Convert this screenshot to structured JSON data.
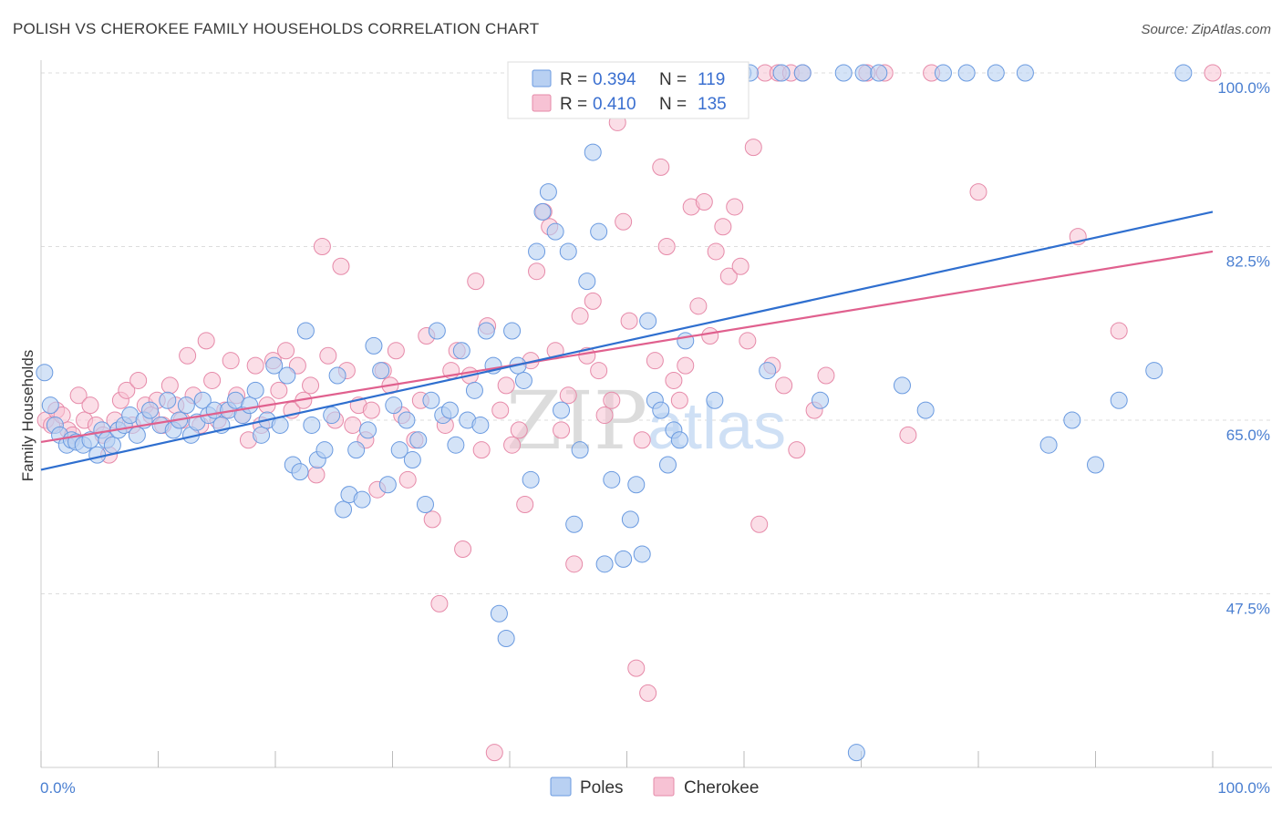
{
  "title": "POLISH VS CHEROKEE FAMILY HOUSEHOLDS CORRELATION CHART",
  "source": "Source: ZipAtlas.com",
  "watermark": {
    "part1": "ZIP",
    "part2": "atlas"
  },
  "colors": {
    "poles_fill": "#b8d0f2",
    "poles_stroke": "#6a9ae0",
    "poles_line": "#2f6fcf",
    "cherokee_fill": "#f7c2d4",
    "cherokee_stroke": "#e68aa9",
    "cherokee_line": "#e0608e",
    "axis_label": "#4a7fd1",
    "grid": "#dddddd"
  },
  "legend": {
    "poles": {
      "r_label": "R = ",
      "r_value": "0.394",
      "n_label": "N = ",
      "n_value": "119"
    },
    "cherokee": {
      "r_label": "R = ",
      "r_value": "0.410",
      "n_label": "N = ",
      "n_value": "135"
    }
  },
  "chart_data": {
    "type": "scatter",
    "title": "POLISH VS CHEROKEE FAMILY HOUSEHOLDS CORRELATION CHART",
    "xlabel": "",
    "ylabel": "Family Households",
    "xlim": [
      0,
      100
    ],
    "ylim": [
      30,
      100
    ],
    "x_tick_labels": [
      "0.0%",
      "100.0%"
    ],
    "y_ticks": [
      47.5,
      65.0,
      82.5,
      100.0
    ],
    "y_tick_labels": [
      "47.5%",
      "65.0%",
      "82.5%",
      "100.0%"
    ],
    "grid": true,
    "legend_position": "top-center",
    "bottom_legend": [
      "Poles",
      "Cherokee"
    ],
    "series": [
      {
        "name": "Poles",
        "R": 0.394,
        "N": 119,
        "trend": {
          "x": [
            0,
            100
          ],
          "y": [
            60.0,
            86.0
          ]
        },
        "points": [
          [
            0.3,
            69.8
          ],
          [
            0.8,
            66.5
          ],
          [
            1.2,
            64.5
          ],
          [
            1.6,
            63.5
          ],
          [
            2.2,
            62.5
          ],
          [
            2.6,
            63.0
          ],
          [
            3.0,
            62.8
          ],
          [
            3.6,
            62.5
          ],
          [
            4.2,
            63.0
          ],
          [
            4.8,
            61.5
          ],
          [
            5.2,
            64.0
          ],
          [
            5.6,
            63.0
          ],
          [
            6.1,
            62.5
          ],
          [
            6.6,
            64.0
          ],
          [
            7.1,
            64.5
          ],
          [
            7.6,
            65.5
          ],
          [
            8.2,
            63.5
          ],
          [
            8.8,
            65.0
          ],
          [
            9.3,
            66.0
          ],
          [
            10.2,
            64.5
          ],
          [
            10.8,
            67.0
          ],
          [
            11.3,
            64.0
          ],
          [
            11.8,
            65.0
          ],
          [
            12.4,
            66.5
          ],
          [
            12.8,
            63.5
          ],
          [
            13.3,
            64.8
          ],
          [
            13.8,
            67.0
          ],
          [
            14.3,
            65.5
          ],
          [
            14.8,
            66.0
          ],
          [
            15.4,
            64.5
          ],
          [
            16.0,
            66.0
          ],
          [
            16.6,
            67.0
          ],
          [
            17.2,
            65.5
          ],
          [
            17.8,
            66.5
          ],
          [
            18.3,
            68.0
          ],
          [
            18.8,
            63.5
          ],
          [
            19.3,
            65.0
          ],
          [
            19.9,
            70.5
          ],
          [
            20.4,
            64.5
          ],
          [
            21.0,
            69.5
          ],
          [
            21.5,
            60.5
          ],
          [
            22.1,
            59.8
          ],
          [
            22.6,
            74.0
          ],
          [
            23.1,
            64.5
          ],
          [
            23.6,
            61.0
          ],
          [
            24.2,
            62.0
          ],
          [
            24.8,
            65.5
          ],
          [
            25.3,
            69.5
          ],
          [
            25.8,
            56.0
          ],
          [
            26.3,
            57.5
          ],
          [
            26.9,
            62.0
          ],
          [
            27.4,
            57.0
          ],
          [
            27.9,
            64.0
          ],
          [
            28.4,
            72.5
          ],
          [
            29.0,
            70.0
          ],
          [
            29.6,
            58.5
          ],
          [
            30.1,
            66.5
          ],
          [
            30.6,
            62.0
          ],
          [
            31.2,
            65.0
          ],
          [
            31.7,
            61.0
          ],
          [
            32.2,
            63.0
          ],
          [
            32.8,
            56.5
          ],
          [
            33.3,
            67.0
          ],
          [
            33.8,
            74.0
          ],
          [
            34.3,
            65.5
          ],
          [
            34.9,
            66.0
          ],
          [
            35.4,
            62.5
          ],
          [
            35.9,
            72.0
          ],
          [
            36.4,
            65.0
          ],
          [
            37.0,
            68.0
          ],
          [
            37.5,
            64.5
          ],
          [
            38.0,
            74.0
          ],
          [
            38.6,
            70.5
          ],
          [
            39.1,
            45.5
          ],
          [
            39.7,
            43.0
          ],
          [
            40.2,
            74.0
          ],
          [
            40.7,
            70.5
          ],
          [
            41.2,
            69.0
          ],
          [
            41.8,
            59.0
          ],
          [
            42.3,
            82.0
          ],
          [
            42.8,
            86.0
          ],
          [
            43.3,
            88.0
          ],
          [
            43.9,
            84.0
          ],
          [
            44.4,
            66.0
          ],
          [
            45.0,
            82.0
          ],
          [
            45.5,
            54.5
          ],
          [
            46.0,
            62.0
          ],
          [
            46.6,
            79.0
          ],
          [
            47.1,
            92.0
          ],
          [
            47.6,
            84.0
          ],
          [
            48.1,
            50.5
          ],
          [
            48.7,
            59.0
          ],
          [
            49.2,
            100.0
          ],
          [
            49.7,
            51.0
          ],
          [
            50.3,
            55.0
          ],
          [
            50.8,
            58.5
          ],
          [
            51.3,
            51.5
          ],
          [
            51.8,
            75.0
          ],
          [
            52.4,
            67.0
          ],
          [
            52.9,
            66.0
          ],
          [
            53.5,
            60.5
          ],
          [
            54.0,
            64.0
          ],
          [
            54.5,
            63.0
          ],
          [
            55.0,
            73.0
          ],
          [
            56.0,
            100.0
          ],
          [
            57.5,
            67.0
          ],
          [
            58.7,
            100.0
          ],
          [
            59.9,
            100.0
          ],
          [
            60.5,
            100.0
          ],
          [
            62.0,
            70.0
          ],
          [
            63.2,
            100.0
          ],
          [
            65.0,
            100.0
          ],
          [
            66.5,
            67.0
          ],
          [
            68.5,
            100.0
          ],
          [
            69.6,
            31.5
          ],
          [
            70.2,
            100.0
          ],
          [
            71.5,
            100.0
          ],
          [
            73.5,
            68.5
          ],
          [
            75.5,
            66.0
          ],
          [
            77.0,
            100.0
          ],
          [
            79.0,
            100.0
          ],
          [
            81.5,
            100.0
          ],
          [
            84.0,
            100.0
          ],
          [
            86.0,
            62.5
          ],
          [
            88.0,
            65.0
          ],
          [
            90.0,
            60.5
          ],
          [
            92.0,
            67.0
          ],
          [
            95.0,
            70.0
          ],
          [
            97.5,
            100.0
          ]
        ]
      },
      {
        "name": "Cherokee",
        "R": 0.41,
        "N": 135,
        "trend": {
          "x": [
            0,
            100
          ],
          "y": [
            62.8,
            82.0
          ]
        },
        "points": [
          [
            0.4,
            65.0
          ],
          [
            0.9,
            64.5
          ],
          [
            1.3,
            66.0
          ],
          [
            1.8,
            65.5
          ],
          [
            2.3,
            64.0
          ],
          [
            2.7,
            63.5
          ],
          [
            3.2,
            67.5
          ],
          [
            3.7,
            65.0
          ],
          [
            4.2,
            66.5
          ],
          [
            4.7,
            64.5
          ],
          [
            5.3,
            63.5
          ],
          [
            5.8,
            61.5
          ],
          [
            6.3,
            65.0
          ],
          [
            6.8,
            67.0
          ],
          [
            7.3,
            68.0
          ],
          [
            7.8,
            64.5
          ],
          [
            8.3,
            69.0
          ],
          [
            8.9,
            66.5
          ],
          [
            9.4,
            65.5
          ],
          [
            9.9,
            67.0
          ],
          [
            10.4,
            64.5
          ],
          [
            11.0,
            68.5
          ],
          [
            11.5,
            66.5
          ],
          [
            12.0,
            65.0
          ],
          [
            12.5,
            71.5
          ],
          [
            13.0,
            67.5
          ],
          [
            13.6,
            64.5
          ],
          [
            14.1,
            73.0
          ],
          [
            14.6,
            69.0
          ],
          [
            15.1,
            65.0
          ],
          [
            15.7,
            66.0
          ],
          [
            16.2,
            71.0
          ],
          [
            16.7,
            67.5
          ],
          [
            17.2,
            65.5
          ],
          [
            17.7,
            63.0
          ],
          [
            18.3,
            70.5
          ],
          [
            18.8,
            64.5
          ],
          [
            19.3,
            66.5
          ],
          [
            19.8,
            71.0
          ],
          [
            20.3,
            68.0
          ],
          [
            20.9,
            72.0
          ],
          [
            21.4,
            66.0
          ],
          [
            21.9,
            70.5
          ],
          [
            22.4,
            67.0
          ],
          [
            23.0,
            68.5
          ],
          [
            23.5,
            59.5
          ],
          [
            24.0,
            82.5
          ],
          [
            24.5,
            71.5
          ],
          [
            25.1,
            65.0
          ],
          [
            25.6,
            80.5
          ],
          [
            26.1,
            70.0
          ],
          [
            26.6,
            64.5
          ],
          [
            27.1,
            66.5
          ],
          [
            27.7,
            63.0
          ],
          [
            28.2,
            66.0
          ],
          [
            28.7,
            58.0
          ],
          [
            29.2,
            70.0
          ],
          [
            29.8,
            68.5
          ],
          [
            30.3,
            72.0
          ],
          [
            30.8,
            65.5
          ],
          [
            31.3,
            59.0
          ],
          [
            31.9,
            63.0
          ],
          [
            32.4,
            67.0
          ],
          [
            32.9,
            73.5
          ],
          [
            33.4,
            55.0
          ],
          [
            34.0,
            46.5
          ],
          [
            34.5,
            64.5
          ],
          [
            35.0,
            70.0
          ],
          [
            35.5,
            72.0
          ],
          [
            36.0,
            52.0
          ],
          [
            36.6,
            69.5
          ],
          [
            37.1,
            79.0
          ],
          [
            37.6,
            62.0
          ],
          [
            38.1,
            74.5
          ],
          [
            38.7,
            31.5
          ],
          [
            39.2,
            66.0
          ],
          [
            39.7,
            68.5
          ],
          [
            40.2,
            62.5
          ],
          [
            40.8,
            64.0
          ],
          [
            41.3,
            56.5
          ],
          [
            41.8,
            71.0
          ],
          [
            42.3,
            80.0
          ],
          [
            42.9,
            86.0
          ],
          [
            43.4,
            84.5
          ],
          [
            43.9,
            72.0
          ],
          [
            44.4,
            64.0
          ],
          [
            45.0,
            67.5
          ],
          [
            45.5,
            50.5
          ],
          [
            46.0,
            75.5
          ],
          [
            46.6,
            71.5
          ],
          [
            47.1,
            77.0
          ],
          [
            47.6,
            70.0
          ],
          [
            48.1,
            65.5
          ],
          [
            48.7,
            67.0
          ],
          [
            49.2,
            95.0
          ],
          [
            49.7,
            85.0
          ],
          [
            50.2,
            75.0
          ],
          [
            50.8,
            40.0
          ],
          [
            51.3,
            63.0
          ],
          [
            51.8,
            37.5
          ],
          [
            52.4,
            71.0
          ],
          [
            52.9,
            90.5
          ],
          [
            53.4,
            82.5
          ],
          [
            54.0,
            69.0
          ],
          [
            54.5,
            67.0
          ],
          [
            55.0,
            70.5
          ],
          [
            55.5,
            86.5
          ],
          [
            56.1,
            76.5
          ],
          [
            56.6,
            87.0
          ],
          [
            57.1,
            73.5
          ],
          [
            57.6,
            82.0
          ],
          [
            58.2,
            84.5
          ],
          [
            58.7,
            79.5
          ],
          [
            59.2,
            86.5
          ],
          [
            59.7,
            80.5
          ],
          [
            60.3,
            73.0
          ],
          [
            60.8,
            92.5
          ],
          [
            61.3,
            54.5
          ],
          [
            61.8,
            100.0
          ],
          [
            62.4,
            70.5
          ],
          [
            62.9,
            100.0
          ],
          [
            63.4,
            68.5
          ],
          [
            64.0,
            100.0
          ],
          [
            64.5,
            62.0
          ],
          [
            65.0,
            100.0
          ],
          [
            66.0,
            66.0
          ],
          [
            67.0,
            69.5
          ],
          [
            70.5,
            100.0
          ],
          [
            72.0,
            100.0
          ],
          [
            74.0,
            63.5
          ],
          [
            76.0,
            100.0
          ],
          [
            80.0,
            88.0
          ],
          [
            88.5,
            83.5
          ],
          [
            92.0,
            74.0
          ],
          [
            100.0,
            100.0
          ]
        ]
      }
    ]
  }
}
